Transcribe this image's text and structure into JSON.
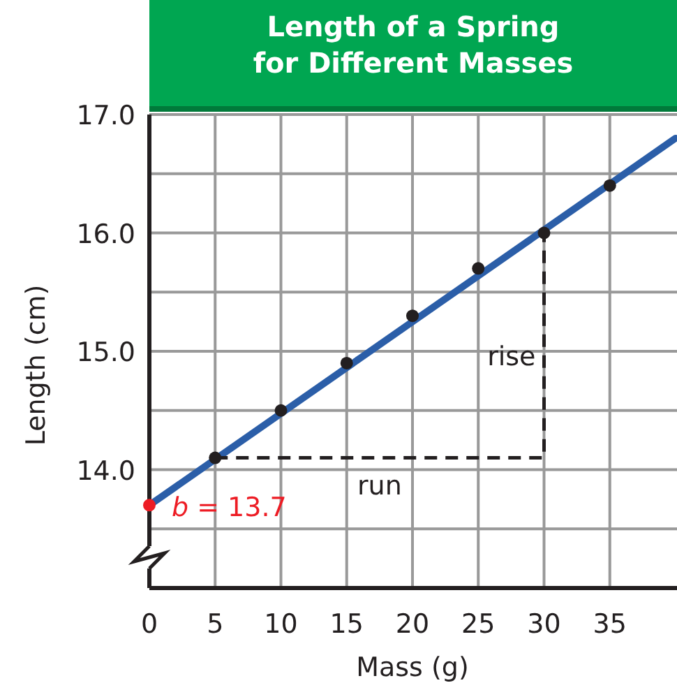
{
  "chart_data": {
    "type": "scatter",
    "title": "Length of a Spring\nfor Different Masses",
    "xlabel": "Mass (g)",
    "ylabel": "Length (cm)",
    "xlim": [
      0,
      40
    ],
    "xticks": [
      {
        "value": 0,
        "label": "0"
      },
      5,
      10,
      15,
      20,
      25,
      30,
      35
    ],
    "ylim": [
      13,
      17
    ],
    "yticks": [
      {
        "value": 13.5,
        "label": null
      },
      {
        "value": 14,
        "label": "14.0"
      },
      {
        "value": 14.5,
        "label": null
      },
      {
        "value": 15,
        "label": "15.0"
      },
      {
        "value": 15.5,
        "label": null
      },
      {
        "value": 16,
        "label": "16.0"
      },
      {
        "value": 16.5,
        "label": null
      },
      {
        "value": 17,
        "label": "17.0"
      }
    ],
    "grid": true,
    "marker": "circle",
    "series": [
      {
        "type": "line",
        "color": "#2b5ea8",
        "x": [
          0,
          40
        ],
        "values": [
          13.7,
          16.8
        ],
        "marker": "none",
        "line_style": "solid"
      },
      {
        "type": "line",
        "color": "#231f20",
        "x": [
          5,
          30,
          30
        ],
        "values": [
          14.1,
          14.1,
          16.0
        ],
        "marker": "none",
        "line_style": "dashed"
      },
      {
        "color": "#231f20",
        "x": [
          5,
          10,
          15,
          20,
          25,
          30,
          35
        ],
        "values": [
          14.1,
          14.5,
          14.9,
          15.3,
          15.7,
          16.0,
          16.4
        ]
      },
      {
        "color": "#ed1c24",
        "x": [
          0
        ],
        "values": [
          13.7
        ]
      }
    ],
    "annotations": [
      {
        "text": "b = 13.7",
        "x": 0,
        "y": 13.7
      },
      "run",
      "rise"
    ]
  }
}
